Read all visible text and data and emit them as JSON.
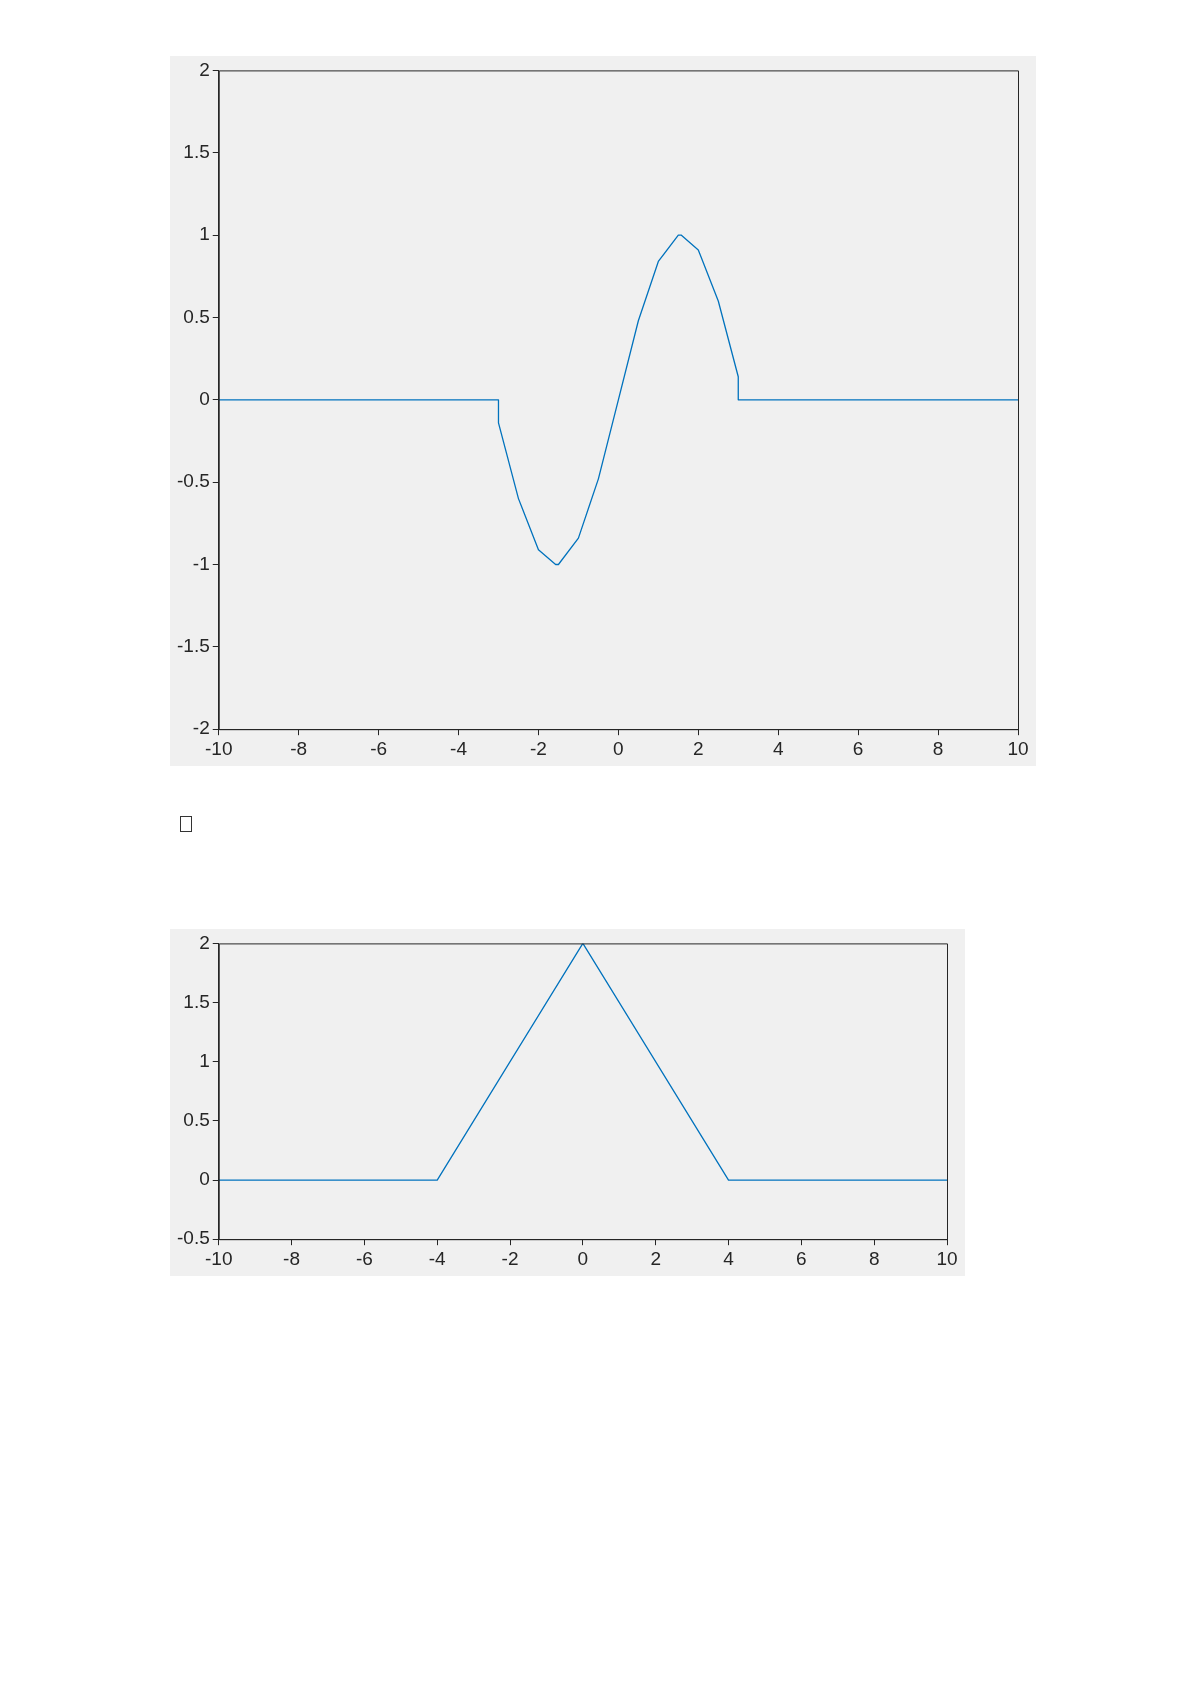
{
  "chart_data": [
    {
      "type": "line",
      "x": [
        -10,
        -3,
        -3,
        -2.5,
        -2,
        -1.57,
        -1.5,
        -1,
        -0.5,
        0,
        0.5,
        1,
        1.5,
        1.57,
        2,
        2.5,
        3,
        3,
        10
      ],
      "series": [
        {
          "color": "#0072bd",
          "values": [
            0,
            0,
            -0.14,
            -0.6,
            -0.91,
            -1,
            -1,
            -0.84,
            -0.48,
            0,
            0.48,
            0.84,
            1,
            1,
            0.91,
            0.6,
            0.14,
            0,
            0
          ]
        }
      ],
      "xlim": [
        -10,
        10
      ],
      "xticks": [
        -10,
        -8,
        -6,
        -4,
        -2,
        0,
        2,
        4,
        6,
        8,
        10
      ],
      "ylim": [
        -2,
        2
      ],
      "yticks": [
        -2,
        -1.5,
        -1,
        -0.5,
        0,
        0.5,
        1,
        1.5,
        2
      ],
      "grid": false
    },
    {
      "type": "line",
      "x": [
        -10,
        -4,
        0,
        4,
        10
      ],
      "series": [
        {
          "color": "#0072bd",
          "values": [
            0,
            0,
            2,
            0,
            0
          ]
        }
      ],
      "xlim": [
        -10,
        10
      ],
      "xticks": [
        -10,
        -8,
        -6,
        -4,
        -2,
        0,
        2,
        4,
        6,
        8,
        10
      ],
      "ylim": [
        -0.5,
        2
      ],
      "yticks": [
        -0.5,
        0,
        0.5,
        1,
        1.5,
        2
      ],
      "grid": false
    }
  ]
}
